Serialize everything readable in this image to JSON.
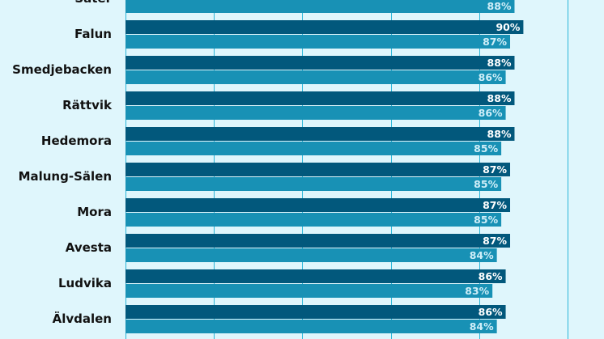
{
  "chart_data": {
    "type": "bar",
    "orientation": "horizontal",
    "categories": [
      "Säter",
      "Falun",
      "Smedjebacken",
      "Rättvik",
      "Hedemora",
      "Malung-Sälen",
      "Mora",
      "Avesta",
      "Ludvika",
      "Älvdalen"
    ],
    "series": [
      {
        "values": [
          null,
          90,
          88,
          88,
          88,
          87,
          87,
          87,
          86,
          86
        ],
        "labels": [
          "",
          "90%",
          "88%",
          "88%",
          "88%",
          "87%",
          "87%",
          "87%",
          "86%",
          "86%"
        ]
      },
      {
        "values": [
          88,
          87,
          86,
          86,
          85,
          85,
          85,
          84,
          83,
          84
        ],
        "labels": [
          "88%",
          "87%",
          "86%",
          "86%",
          "85%",
          "85%",
          "85%",
          "84%",
          "83%",
          "84%"
        ]
      }
    ],
    "xlim": [
      0,
      110
    ],
    "grid": true,
    "colors": {
      "series_1": "#02587c",
      "series_2": "#1891b5",
      "background": "#dff6fc",
      "grid": "#2bb6d9",
      "label_on_dark": "#ffffff",
      "label_on_light": "#cfeef8"
    }
  }
}
